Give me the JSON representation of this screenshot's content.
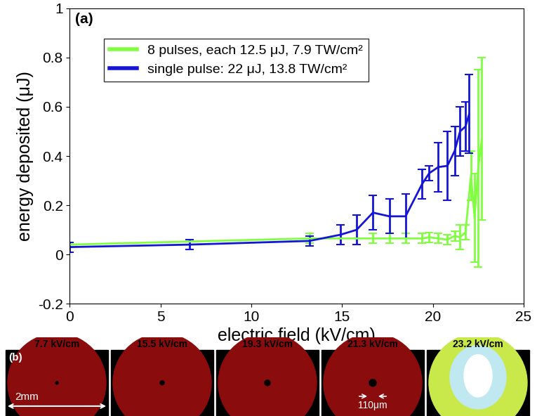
{
  "chart_data": {
    "type": "line",
    "panel_label": "(a)",
    "x_label": "electric field (kV/cm)",
    "y_label": "energy deposited (μJ)",
    "xlim": [
      0,
      25
    ],
    "xticks": [
      0,
      5,
      10,
      15,
      20,
      25
    ],
    "ylim": [
      -0.2,
      1
    ],
    "yticks": [
      -0.2,
      0,
      0.2,
      0.4,
      0.6,
      0.8,
      1
    ],
    "legend": "upper left",
    "series": [
      {
        "name": "8 pulses, each 12.5 μJ, 7.9 TW/cm²",
        "color": "#80ff40",
        "x": [
          0,
          13.2,
          16.7,
          17.6,
          18.5,
          19.4,
          19.8,
          20.3,
          20.8,
          21.2,
          21.5,
          21.8,
          22.1,
          22.3,
          22.5,
          22.7
        ],
        "values": [
          0.04,
          0.065,
          0.065,
          0.065,
          0.065,
          0.065,
          0.07,
          0.065,
          0.06,
          0.075,
          0.07,
          0.09,
          0.32,
          0.15,
          0.35,
          0.47
        ],
        "errors": [
          0.01,
          0.02,
          0.02,
          0.02,
          0.02,
          0.02,
          0.02,
          0.02,
          0.02,
          0.02,
          0.05,
          0.03,
          0.1,
          0.18,
          0.4,
          0.33
        ]
      },
      {
        "name": "single pulse: 22 μJ, 13.8 TW/cm²",
        "color": "#1515d6",
        "x": [
          0,
          6.6,
          13.2,
          14.9,
          15.8,
          16.7,
          17.6,
          18.5,
          19.4,
          19.8,
          20.3,
          20.8,
          21.2,
          21.5,
          21.8,
          22.0
        ],
        "values": [
          0.03,
          0.04,
          0.055,
          0.08,
          0.1,
          0.17,
          0.155,
          0.155,
          0.285,
          0.33,
          0.355,
          0.36,
          0.42,
          0.5,
          0.52,
          0.57
        ],
        "errors": [
          0.02,
          0.02,
          0.02,
          0.04,
          0.06,
          0.07,
          0.07,
          0.09,
          0.06,
          0.03,
          0.1,
          0.14,
          0.1,
          0.1,
          0.1,
          0.16
        ]
      }
    ]
  },
  "panel_b": {
    "label": "(b)",
    "images": [
      "7.7 kV/cm",
      "15.5 kV/cm",
      "19.3 kV/cm",
      "21.3 kV/cm",
      "23.2 kV/cm"
    ],
    "scale_bar": "2mm",
    "spot_size": "110μm"
  }
}
